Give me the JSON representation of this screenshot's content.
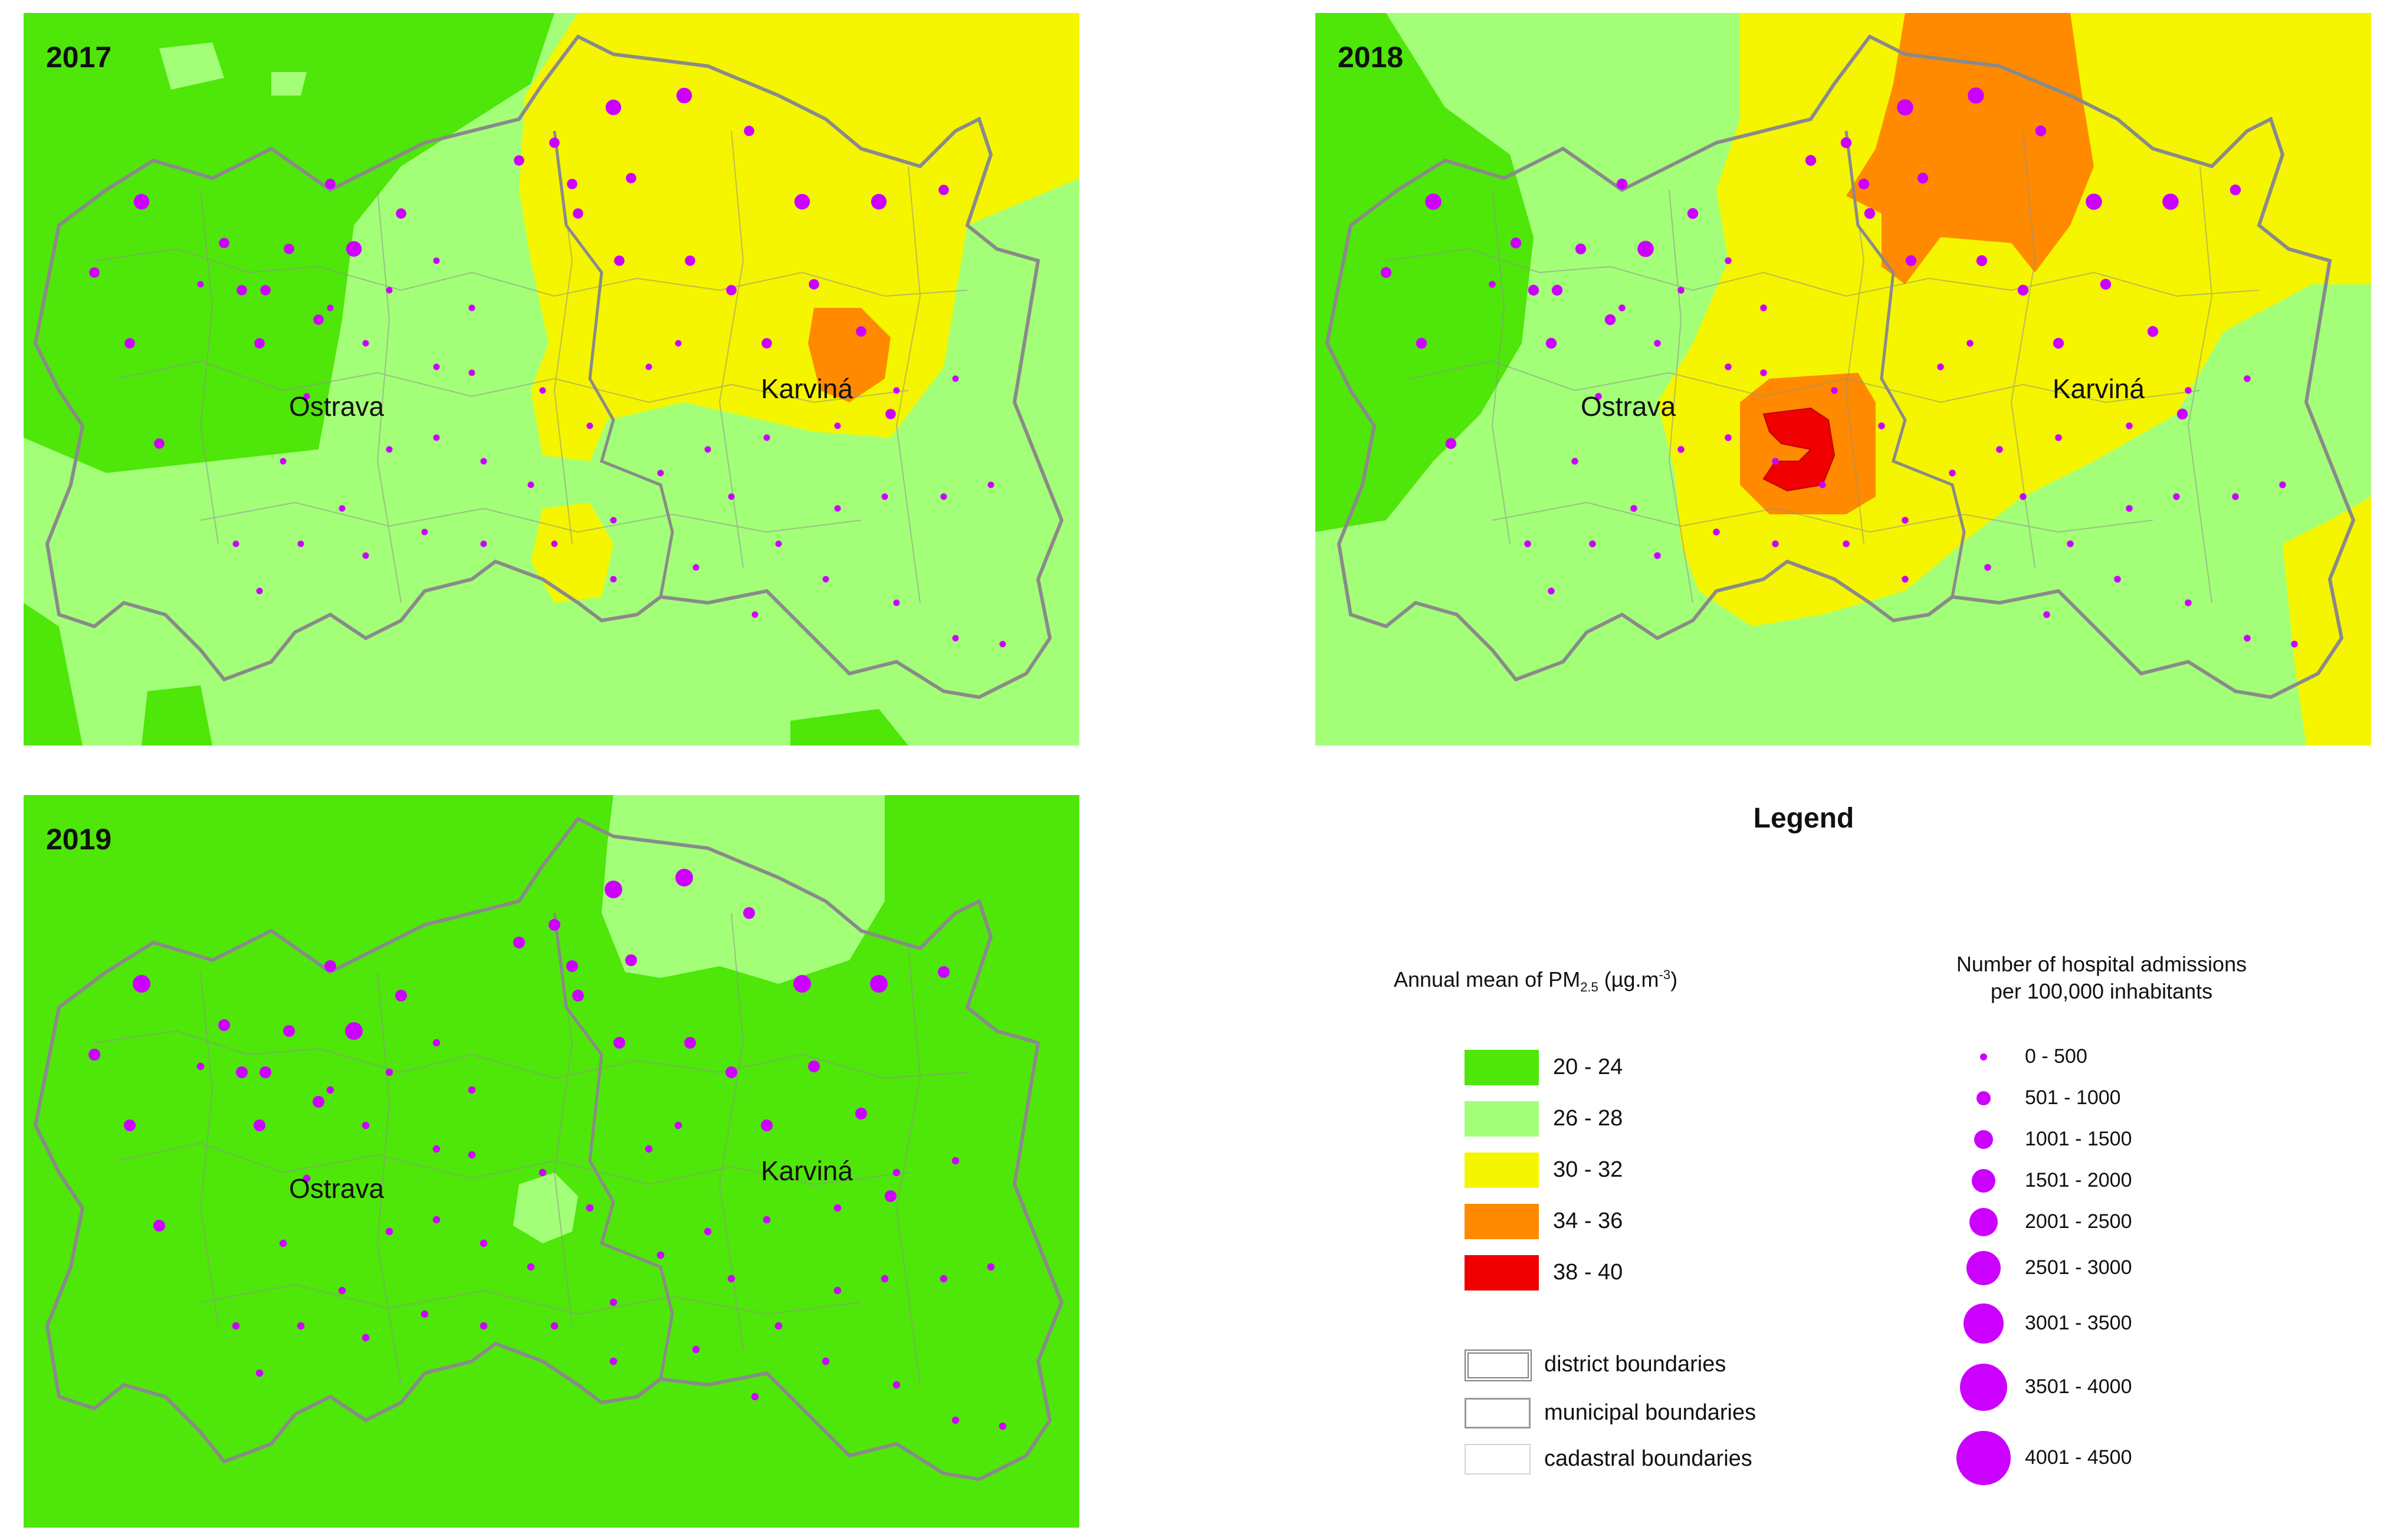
{
  "maps": [
    {
      "year": "2017",
      "city1": "Ostrava",
      "city2": "Karviná"
    },
    {
      "year": "2018",
      "city1": "Ostrava",
      "city2": "Karviná"
    },
    {
      "year": "2019",
      "city1": "Ostrava",
      "city2": "Karviná"
    }
  ],
  "legend": {
    "title": "Legend",
    "pm_title_prefix": "Annual mean of PM",
    "pm_title_sub": "2.5",
    "pm_title_unit": " (µg.m",
    "pm_title_sup": "-3",
    "pm_title_close": ")",
    "pm_classes": [
      {
        "label": "20 - 24",
        "color": "#4fe60a"
      },
      {
        "label": "26 - 28",
        "color": "#a3ff78"
      },
      {
        "label": "30 - 32",
        "color": "#f5f500"
      },
      {
        "label": "34 - 36",
        "color": "#ff8a00"
      },
      {
        "label": "38 - 40",
        "color": "#f00000"
      }
    ],
    "boundaries": [
      {
        "label": "district boundaries",
        "style": "district"
      },
      {
        "label": "municipal boundaries",
        "style": "municipal"
      },
      {
        "label": "cadastral boundaries",
        "style": "cadastral"
      }
    ],
    "admissions_title_line1": "Number of hospital admissions",
    "admissions_title_line2": "per 100,000 inhabitants",
    "admission_classes": [
      {
        "label": "0 - 500"
      },
      {
        "label": "501 - 1000"
      },
      {
        "label": "1001 - 1500"
      },
      {
        "label": "1501 - 2000"
      },
      {
        "label": "2001 - 2500"
      },
      {
        "label": "2501 - 3000"
      },
      {
        "label": "3001 - 3500"
      },
      {
        "label": "3501 - 4000"
      },
      {
        "label": "4001 - 4500"
      }
    ],
    "dot_color": "#cc00ff"
  }
}
